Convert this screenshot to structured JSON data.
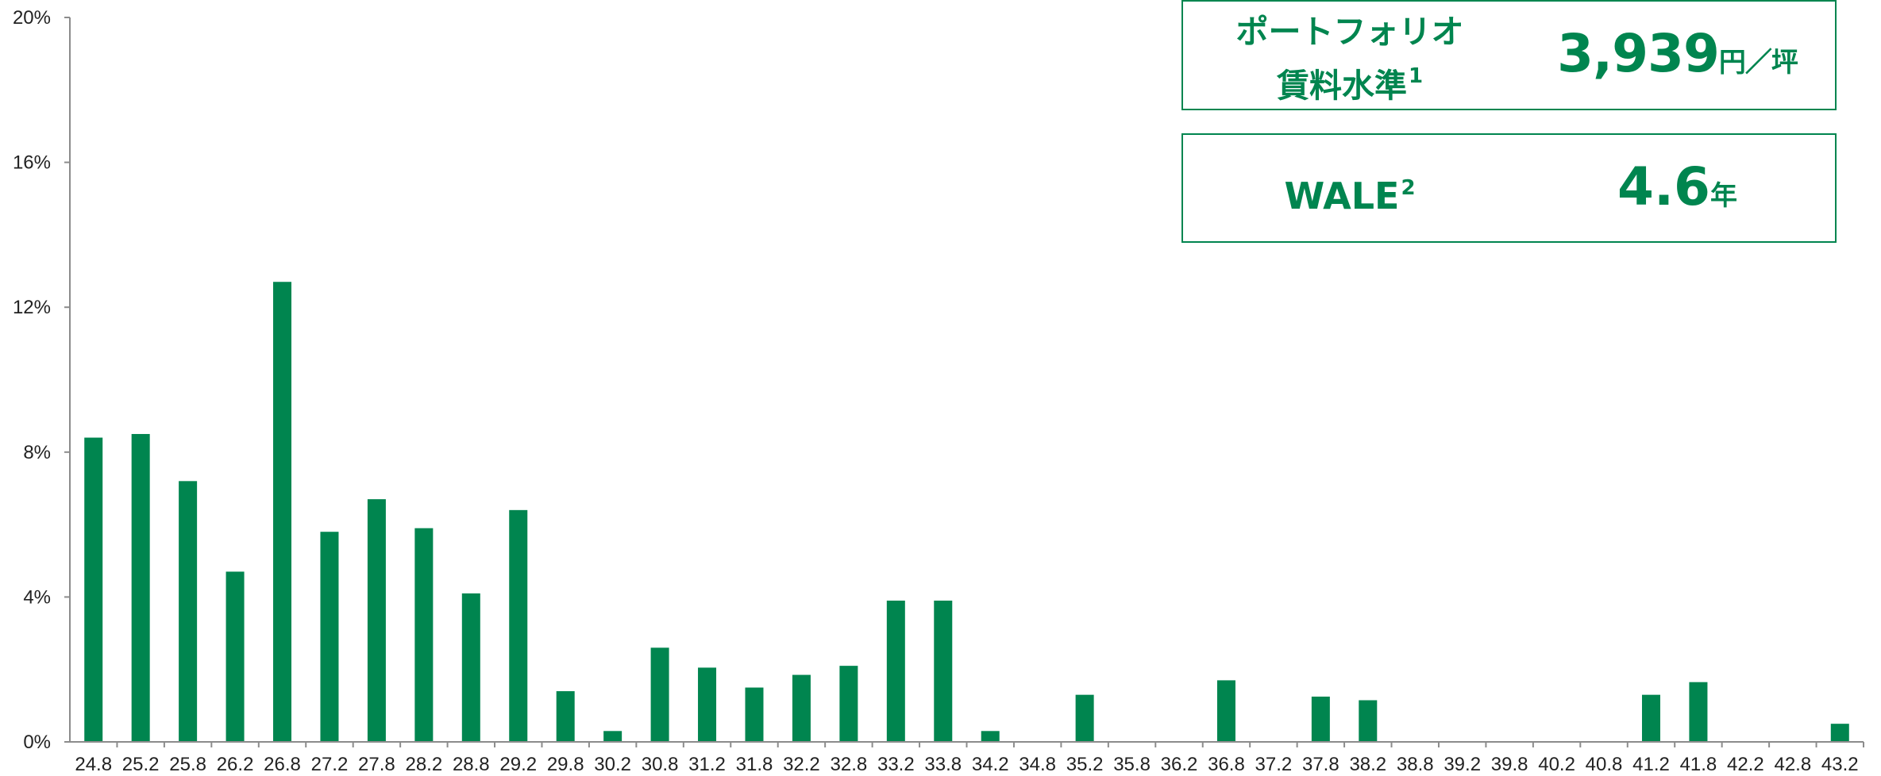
{
  "colors": {
    "bar": "#00854F",
    "axis": "#8c8c8c",
    "box": "#00854F"
  },
  "info_boxes": {
    "rent": {
      "label_line1": "ポートフォリオ",
      "label_line2": "賃料水準",
      "label_sup": "1",
      "value": "3,939",
      "unit": "円／坪"
    },
    "wale": {
      "label": "WALE",
      "label_sup": "2",
      "value": "4.6",
      "unit": "年"
    }
  },
  "chart_data": {
    "type": "bar",
    "title": "",
    "xlabel": "",
    "ylabel": "",
    "ylim": [
      0,
      20
    ],
    "y_ticks": [
      "0%",
      "4%",
      "8%",
      "12%",
      "16%",
      "20%"
    ],
    "y_tick_values": [
      0,
      4,
      8,
      12,
      16,
      20
    ],
    "categories": [
      "24.8",
      "25.2",
      "25.8",
      "26.2",
      "26.8",
      "27.2",
      "27.8",
      "28.2",
      "28.8",
      "29.2",
      "29.8",
      "30.2",
      "30.8",
      "31.2",
      "31.8",
      "32.2",
      "32.8",
      "33.2",
      "33.8",
      "34.2",
      "34.8",
      "35.2",
      "35.8",
      "36.2",
      "36.8",
      "37.2",
      "37.8",
      "38.2",
      "38.8",
      "39.2",
      "39.8",
      "40.2",
      "40.8",
      "41.2",
      "41.8",
      "42.2",
      "42.8",
      "43.2"
    ],
    "values": [
      8.4,
      8.5,
      7.2,
      4.7,
      12.7,
      5.8,
      6.7,
      5.9,
      4.1,
      6.4,
      1.4,
      0.3,
      2.6,
      2.05,
      1.5,
      1.85,
      2.1,
      3.9,
      3.9,
      0.3,
      0,
      1.3,
      0,
      0,
      1.7,
      0,
      1.25,
      1.15,
      0,
      0,
      0,
      0,
      0,
      1.3,
      1.65,
      0,
      0,
      0.5
    ],
    "grid": false,
    "legend": "none"
  }
}
